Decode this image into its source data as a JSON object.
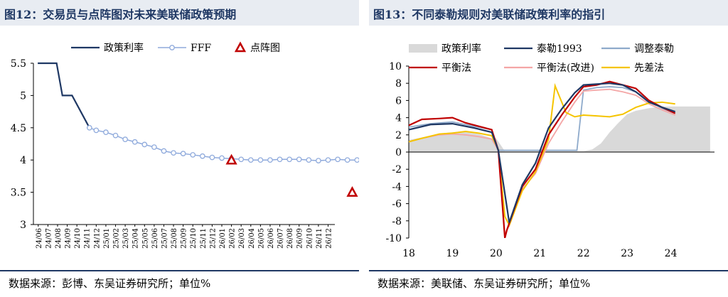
{
  "chart_data": [
    {
      "type": "line",
      "title": "图12：交易员与点阵图对未来美联储政策预期",
      "source": "数据来源：彭博、东吴证券研究所；单位%",
      "ylim": [
        3,
        5.5
      ],
      "yticks": [
        "3",
        "3.5",
        "4",
        "4.5",
        "5",
        "5.5"
      ],
      "categories": [
        "24/06",
        "24/07",
        "24/08",
        "24/09",
        "24/10",
        "24/11",
        "24/12",
        "25/01",
        "25/02",
        "25/03",
        "25/04",
        "25/05",
        "25/06",
        "25/07",
        "25/08",
        "25/09",
        "25/10",
        "25/11",
        "25/12",
        "26/01",
        "26/02",
        "26/03",
        "26/04",
        "26/05",
        "26/06",
        "26/07",
        "26/08",
        "26/09",
        "26/10",
        "26/11",
        "26/12"
      ],
      "legend": [
        "政策利率",
        "FFF",
        "点阵图"
      ],
      "series": [
        {
          "name": "政策利率",
          "color": "#1f3864",
          "x": [
            -0.05,
            1.9,
            2.5,
            3.5,
            5.3
          ],
          "y": [
            5.5,
            5.5,
            5.0,
            5.0,
            4.5
          ]
        },
        {
          "name": "FFF",
          "color": "#8faadc",
          "x": [
            5.3,
            6,
            7,
            8,
            9,
            10,
            11,
            12,
            13,
            14,
            15,
            16,
            17,
            18,
            19,
            20,
            21,
            22,
            23,
            24,
            25,
            26,
            27,
            28,
            29,
            30,
            31,
            32,
            33,
            34
          ],
          "y": [
            4.5,
            4.46,
            4.43,
            4.38,
            4.32,
            4.28,
            4.24,
            4.2,
            4.14,
            4.11,
            4.1,
            4.08,
            4.06,
            4.04,
            4.03,
            4.02,
            4.01,
            4.0,
            4.0,
            4.0,
            4.01,
            4.01,
            4.01,
            4.0,
            3.99,
            4.0,
            4.01,
            4.0,
            4.0,
            4.02
          ]
        },
        {
          "name": "点阵图",
          "color": "#c00000",
          "x": [
            20,
            32.5
          ],
          "y": [
            4.0,
            3.5
          ]
        }
      ]
    },
    {
      "type": "line",
      "title": "图13：不同泰勒规则对美联储政策利率的指引",
      "source": "数据来源：美联储、东吴证券研究所；单位%",
      "ylim": [
        -10,
        10
      ],
      "yticks": [
        "10",
        "8",
        "6",
        "4",
        "2",
        "0",
        "-2",
        "-4",
        "-6",
        "-8",
        "-10"
      ],
      "xticks": [
        "18",
        "19",
        "20",
        "21",
        "22",
        "23",
        "24"
      ],
      "xlim": [
        2018,
        2025
      ],
      "legend": [
        "政策利率",
        "泰勒1993",
        "调整泰勒",
        "平衡法",
        "平衡法(改进)",
        "先差法"
      ],
      "series": [
        {
          "name": "政策利率",
          "color": "#d9d9d9",
          "x": [
            2018.0,
            2018.4,
            2018.8,
            2019.2,
            2019.6,
            2019.9,
            2020.0,
            2020.2,
            2021.0,
            2021.8,
            2022.0,
            2022.2,
            2022.4,
            2022.6,
            2022.8,
            2023.0,
            2023.2,
            2023.5,
            2023.8,
            2024.0,
            2024.6,
            2024.9
          ],
          "y": [
            1.4,
            1.8,
            2.2,
            2.4,
            2.1,
            1.6,
            1.6,
            0.1,
            0.1,
            0.1,
            0.1,
            0.3,
            1.0,
            2.3,
            3.4,
            4.4,
            4.8,
            5.1,
            5.3,
            5.3,
            5.3,
            5.3
          ]
        },
        {
          "name": "泰勒1993",
          "color": "#1f3864",
          "x": [
            2018.0,
            2018.5,
            2019.0,
            2019.5,
            2019.9,
            2020.05,
            2020.3,
            2020.6,
            2020.9,
            2021.2,
            2021.5,
            2021.8,
            2022.0,
            2022.3,
            2022.6,
            2022.9,
            2023.2,
            2023.5,
            2023.8,
            2024.1
          ],
          "y": [
            2.6,
            3.2,
            3.3,
            2.8,
            2.3,
            0.2,
            -8.2,
            -3.8,
            -1.3,
            2.8,
            5.0,
            6.9,
            7.8,
            7.9,
            8.0,
            7.8,
            7.0,
            5.8,
            5.2,
            4.7
          ]
        },
        {
          "name": "调整泰勒",
          "color": "#8eaacb",
          "x": [
            2018.0,
            2018.5,
            2019.0,
            2019.5,
            2019.9,
            2020.05,
            2020.4,
            2021.0,
            2021.85,
            2022.0,
            2022.3,
            2022.6,
            2022.9,
            2023.2,
            2023.5,
            2023.8,
            2024.1
          ],
          "y": [
            2.9,
            3.3,
            3.5,
            3.0,
            2.6,
            0.2,
            0.2,
            0.2,
            0.2,
            7.2,
            7.5,
            7.6,
            7.5,
            7.0,
            6.0,
            5.1,
            4.5
          ]
        },
        {
          "name": "平衡法",
          "color": "#c00000",
          "x": [
            2018.0,
            2018.3,
            2018.7,
            2019.0,
            2019.3,
            2019.6,
            2019.9,
            2020.05,
            2020.2,
            2020.25,
            2020.6,
            2020.9,
            2021.2,
            2021.5,
            2021.8,
            2022.0,
            2022.3,
            2022.6,
            2022.9,
            2023.2,
            2023.5,
            2023.8,
            2024.1
          ],
          "y": [
            3.1,
            3.8,
            3.9,
            4.0,
            3.4,
            3.0,
            2.6,
            0.2,
            -10.0,
            -9.0,
            -4.0,
            -2.0,
            2.0,
            4.3,
            6.4,
            7.6,
            7.8,
            8.2,
            7.8,
            7.4,
            6.0,
            5.2,
            4.5
          ]
        },
        {
          "name": "平衡法(改进)",
          "color": "#f4a6a6",
          "x": [
            2018.0,
            2018.3,
            2018.7,
            2019.0,
            2019.3,
            2019.6,
            2019.9,
            2020.05,
            2020.2,
            2020.3,
            2020.6,
            2020.9,
            2021.2,
            2021.5,
            2021.8,
            2022.0,
            2022.3,
            2022.6,
            2022.9,
            2023.2,
            2023.5,
            2023.8,
            2024.1
          ],
          "y": [
            1.2,
            1.6,
            2.0,
            2.1,
            2.0,
            1.8,
            1.5,
            0.2,
            -9.5,
            -8.6,
            -4.3,
            -2.5,
            1.0,
            3.5,
            5.8,
            7.1,
            7.2,
            7.3,
            7.0,
            6.6,
            5.6,
            4.9,
            4.3
          ]
        },
        {
          "name": "先差法",
          "color": "#f5c400",
          "x": [
            2018.0,
            2018.3,
            2018.7,
            2019.0,
            2019.3,
            2019.6,
            2019.9,
            2020.05,
            2020.2,
            2020.3,
            2020.6,
            2020.9,
            2021.2,
            2021.35,
            2021.6,
            2021.8,
            2022.0,
            2022.3,
            2022.6,
            2022.9,
            2023.2,
            2023.5,
            2023.8,
            2024.1
          ],
          "y": [
            1.2,
            1.6,
            2.1,
            2.2,
            2.4,
            2.2,
            1.9,
            0.3,
            -7.5,
            -8.5,
            -4.5,
            -2.3,
            1.5,
            7.7,
            4.6,
            4.1,
            4.3,
            4.2,
            4.1,
            4.4,
            5.2,
            5.7,
            5.8,
            5.6
          ]
        }
      ]
    }
  ]
}
